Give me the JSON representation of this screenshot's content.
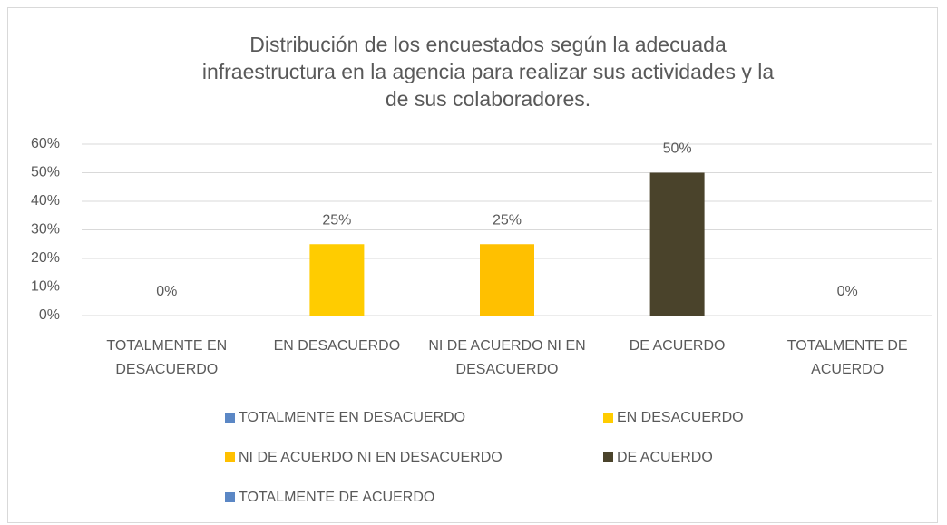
{
  "chart_data": {
    "type": "bar",
    "title": "Distribución de los encuestados según la adecuada infraestructura en la agencia para realizar sus actividades y la de sus colaboradores.",
    "categories": [
      "TOTALMENTE EN DESACUERDO",
      "EN DESACUERDO",
      "NI DE ACUERDO NI EN DESACUERDO",
      "DE ACUERDO",
      "TOTALMENTE DE ACUERDO"
    ],
    "values": [
      0,
      25,
      25,
      50,
      0
    ],
    "value_labels": [
      "0%",
      "25%",
      "25%",
      "50%",
      "0%"
    ],
    "colors": [
      "#5b87c5",
      "#ffcc00",
      "#ffc000",
      "#4a432b",
      "#5b87c5"
    ],
    "ylim": [
      0,
      60
    ],
    "yticks": [
      {
        "value": 0,
        "label": "0%"
      },
      {
        "value": 10,
        "label": "10%"
      },
      {
        "value": 20,
        "label": "20%"
      },
      {
        "value": 30,
        "label": "30%"
      },
      {
        "value": 40,
        "label": "40%"
      },
      {
        "value": 50,
        "label": "50%"
      },
      {
        "value": 60,
        "label": "60%"
      }
    ],
    "grid": true,
    "legend": "bottom"
  }
}
